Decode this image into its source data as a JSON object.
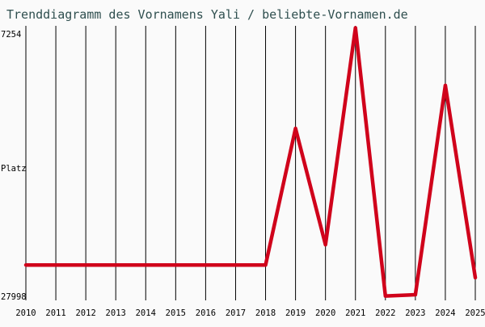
{
  "chart_data": {
    "type": "line",
    "title": "Trenddiagramm des Vornamens Yali / beliebte-Vornamen.de",
    "ylabel": "Platz",
    "y_tick_labels": [
      "7254",
      "27998"
    ],
    "ylim": [
      7254,
      27998
    ],
    "y_reversed": true,
    "categories": [
      "2010",
      "2011",
      "2012",
      "2013",
      "2014",
      "2015",
      "2016",
      "2017",
      "2018",
      "2019",
      "2020",
      "2021",
      "2022",
      "2023",
      "2024",
      "2025"
    ],
    "values": [
      25650,
      25650,
      25650,
      25650,
      25650,
      25650,
      25650,
      25650,
      25650,
      14850,
      24050,
      6900,
      28100,
      28000,
      11450,
      26650
    ],
    "grid": true,
    "series_color": "#d0021b"
  }
}
